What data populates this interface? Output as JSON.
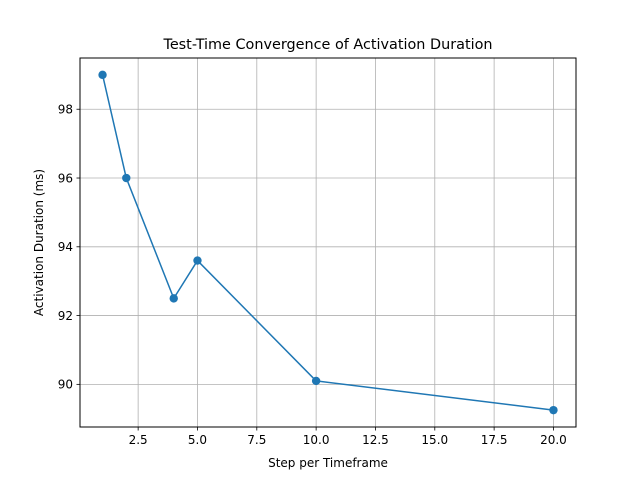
{
  "chart_data": {
    "type": "line",
    "title": "Test-Time Convergence of Activation Duration",
    "xlabel": "Step per Timeframe",
    "ylabel": "Activation Duration (ms)",
    "x": [
      1,
      2,
      4,
      5,
      10,
      20
    ],
    "series": [
      {
        "values": [
          99.0,
          96.0,
          92.5,
          93.6,
          90.1,
          89.25
        ]
      }
    ],
    "xlim": [
      0.05,
      20.95
    ],
    "ylim": [
      88.76,
      99.49
    ],
    "xticks": [
      2.5,
      5.0,
      7.5,
      10.0,
      12.5,
      15.0,
      17.5,
      20.0
    ],
    "xtick_labels": [
      "2.5",
      "5.0",
      "7.5",
      "10.0",
      "12.5",
      "15.0",
      "17.5",
      "20.0"
    ],
    "yticks": [
      90,
      92,
      94,
      96,
      98
    ],
    "ytick_labels": [
      "90",
      "92",
      "94",
      "96",
      "98"
    ],
    "grid": true,
    "marker": "circle",
    "colors": {
      "line": "#1f77b4",
      "grid": "#b0b0b0",
      "axes": "#000000"
    }
  }
}
